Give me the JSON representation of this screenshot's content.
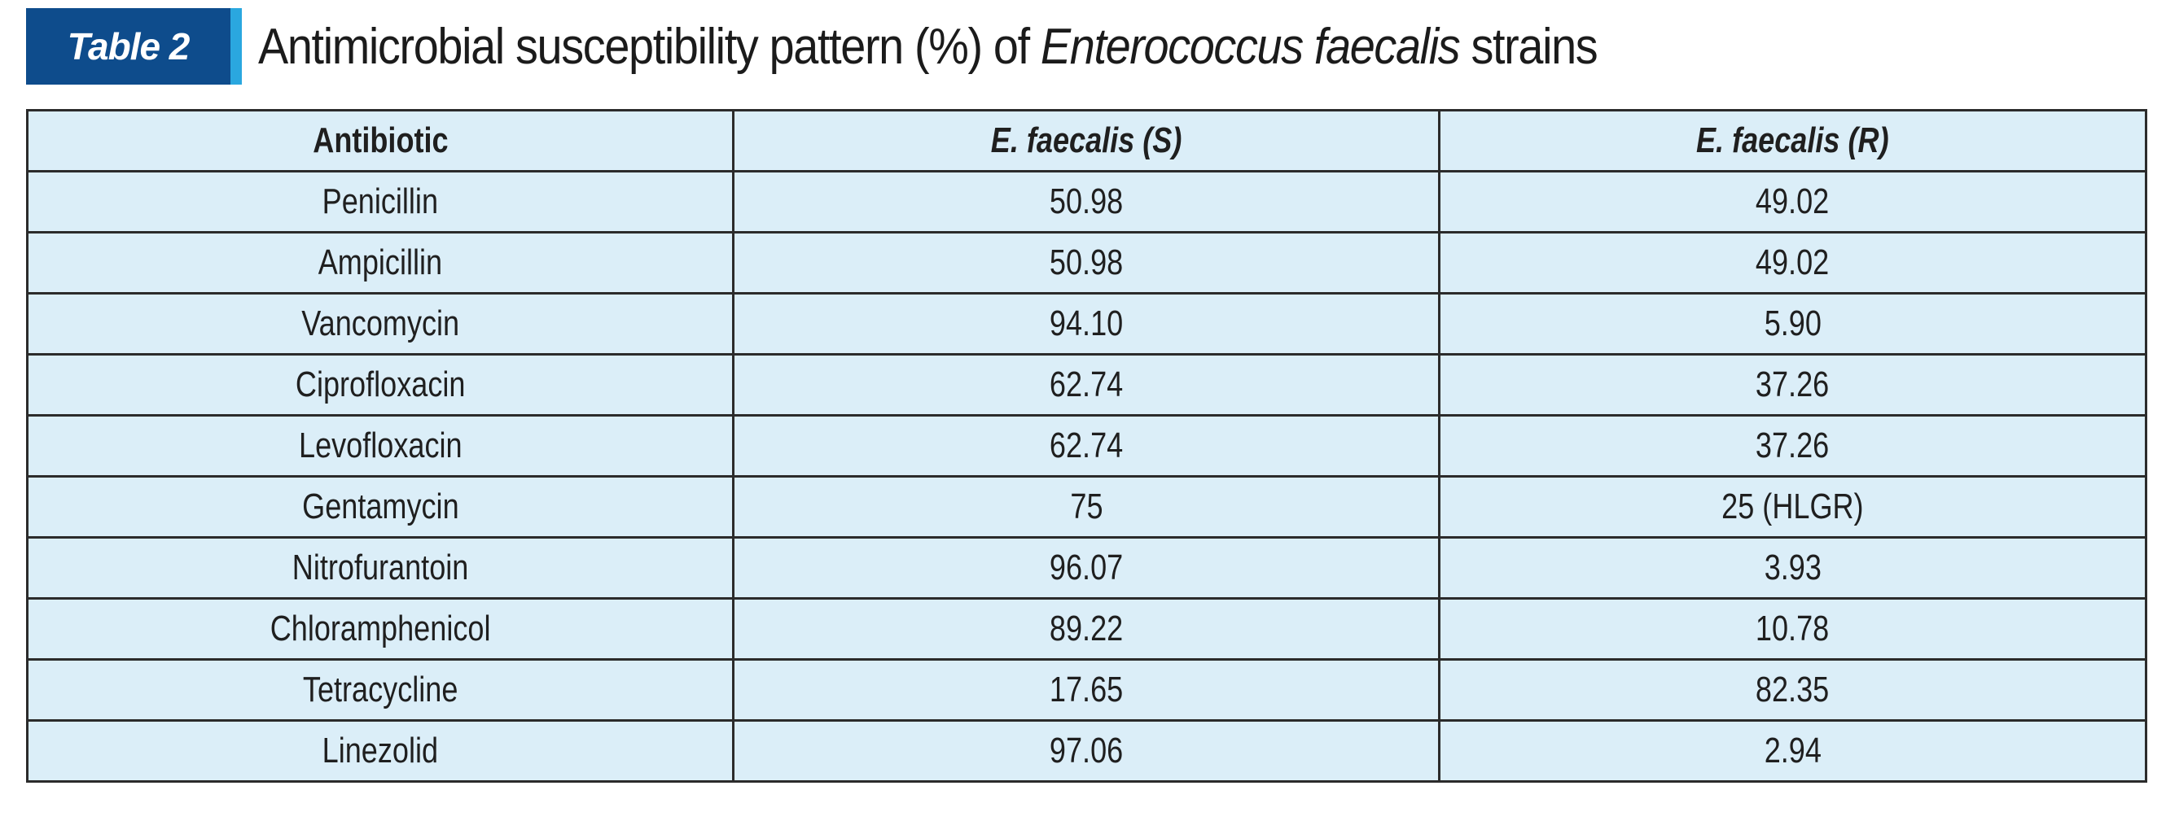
{
  "caption": {
    "label": "Table 2",
    "title_prefix": "Antimicrobial susceptibility pattern (%) of ",
    "title_italic": "Enterococcus faecalis",
    "title_suffix": " strains",
    "badge_color": "#0e4c8c",
    "accent_color": "#2aa7df"
  },
  "table": {
    "headers": [
      "Antibiotic",
      "E. faecalis (S)",
      "E. faecalis (R)"
    ],
    "rows": [
      [
        "Penicillin",
        "50.98",
        "49.02"
      ],
      [
        "Ampicillin",
        "50.98",
        "49.02"
      ],
      [
        "Vancomycin",
        "94.10",
        "5.90"
      ],
      [
        "Ciprofloxacin",
        "62.74",
        "37.26"
      ],
      [
        "Levofloxacin",
        "62.74",
        "37.26"
      ],
      [
        "Gentamycin",
        "75",
        "25 (HLGR)"
      ],
      [
        "Nitrofurantoin",
        "96.07",
        "3.93"
      ],
      [
        "Chloramphenicol",
        "89.22",
        "10.78"
      ],
      [
        "Tetracycline",
        "17.65",
        "82.35"
      ],
      [
        "Linezolid",
        "97.06",
        "2.94"
      ]
    ],
    "row_fill": "#dbeef8",
    "border_color": "#2b2b2b"
  }
}
